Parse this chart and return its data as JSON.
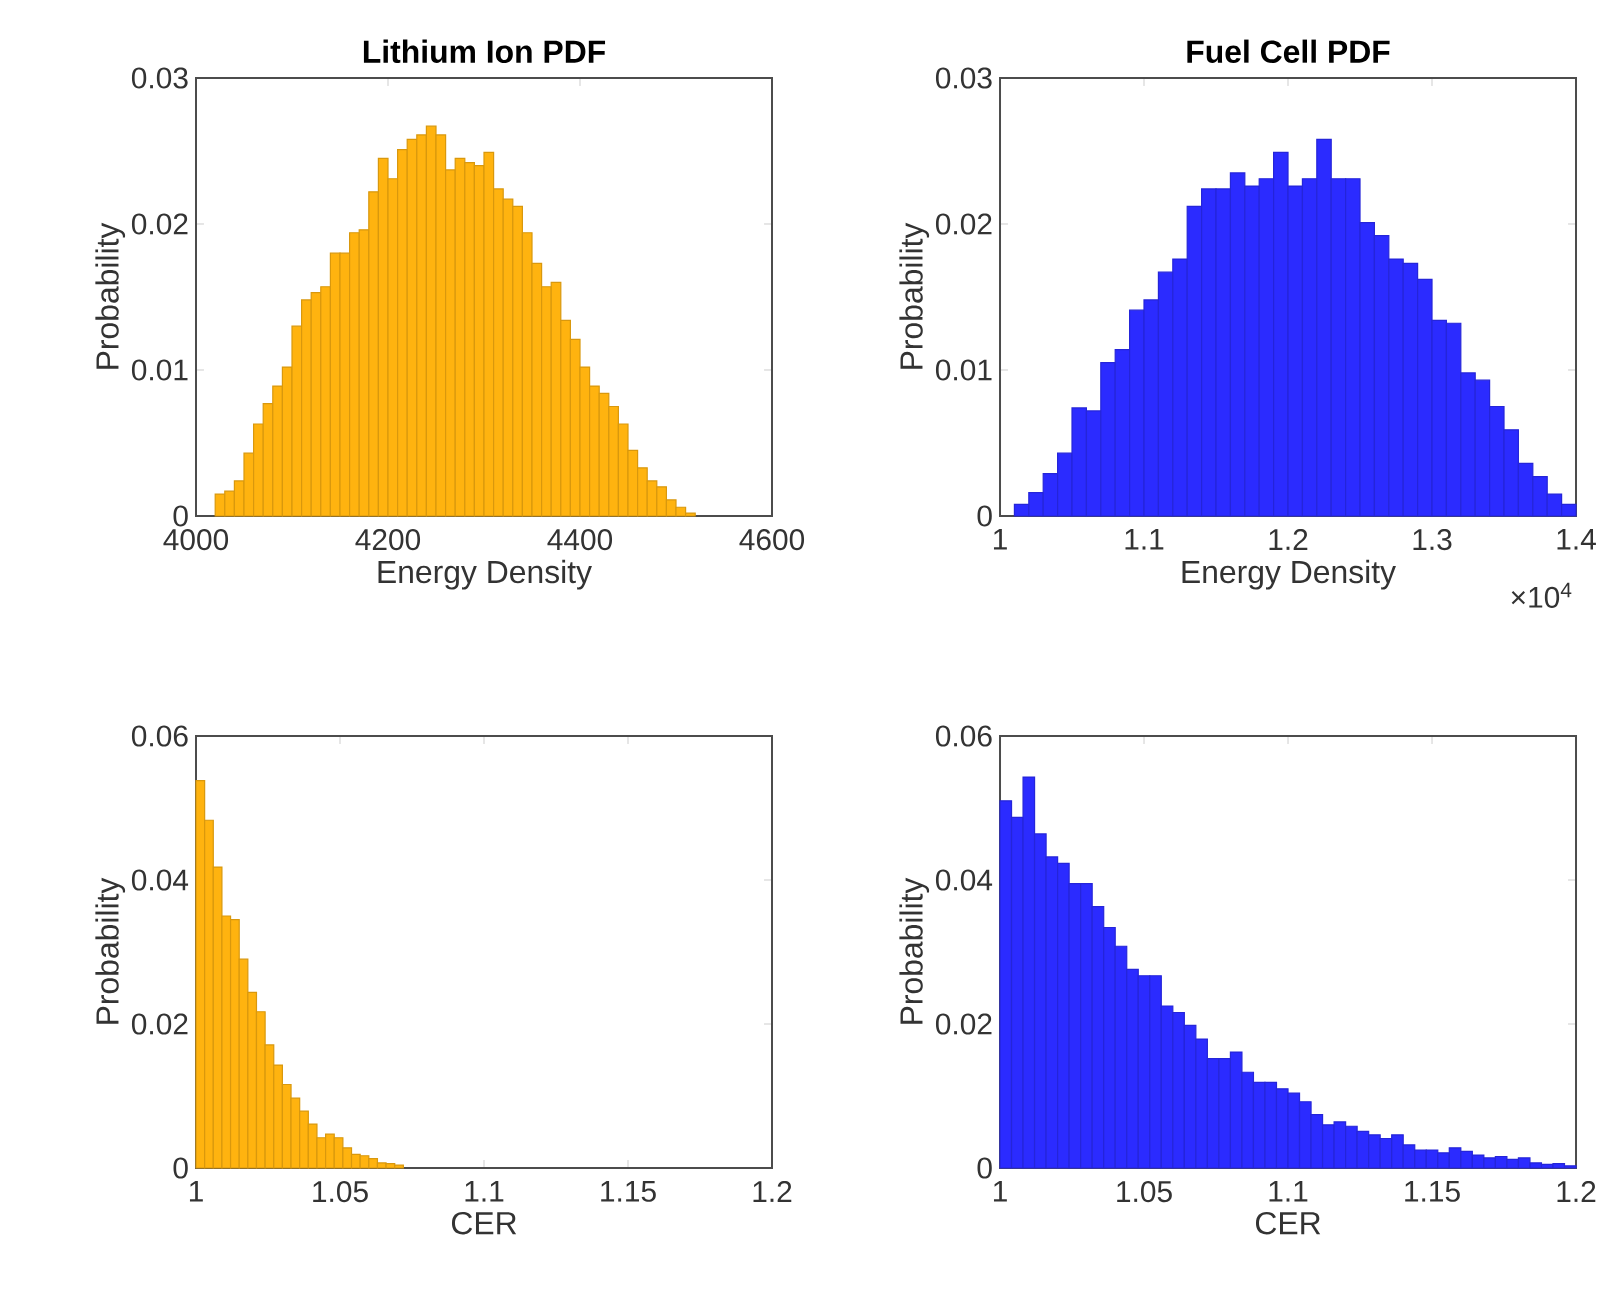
{
  "chart_data": [
    {
      "type": "histogram",
      "title": "Lithium Ion PDF",
      "xlabel": "Energy Density",
      "ylabel": "Probability",
      "color": "#ffb30f",
      "bins": [
        4020,
        4030,
        4040,
        4050,
        4060,
        4070,
        4080,
        4090,
        4100,
        4110,
        4120,
        4130,
        4140,
        4150,
        4160,
        4170,
        4180,
        4190,
        4200,
        4210,
        4220,
        4230,
        4240,
        4250,
        4260,
        4270,
        4280,
        4290,
        4300,
        4310,
        4320,
        4330,
        4340,
        4350,
        4360,
        4370,
        4380,
        4390,
        4400,
        4410,
        4420,
        4430,
        4440,
        4450,
        4460,
        4470,
        4480,
        4490,
        4500,
        4510,
        4520
      ],
      "values": [
        0.0015,
        0.0017,
        0.0024,
        0.0043,
        0.0063,
        0.0077,
        0.0089,
        0.0102,
        0.013,
        0.0148,
        0.0153,
        0.0157,
        0.018,
        0.018,
        0.0194,
        0.0196,
        0.0222,
        0.0245,
        0.0231,
        0.0251,
        0.0258,
        0.0261,
        0.0267,
        0.0261,
        0.0237,
        0.0245,
        0.0242,
        0.024,
        0.0249,
        0.0224,
        0.0217,
        0.0212,
        0.0194,
        0.0173,
        0.0157,
        0.016,
        0.0134,
        0.0121,
        0.0102,
        0.0089,
        0.0084,
        0.0075,
        0.0063,
        0.0045,
        0.0033,
        0.0024,
        0.002,
        0.0011,
        0.0006,
        0.0002
      ],
      "xlim": [
        4000,
        4600
      ],
      "xticks": [
        4000,
        4200,
        4400,
        4600
      ],
      "ylim": [
        0,
        0.03
      ],
      "yticks": [
        0,
        0.01,
        0.02,
        0.03
      ]
    },
    {
      "type": "histogram",
      "title": "Fuel Cell PDF",
      "xlabel": "Energy Density",
      "ylabel": "Probability",
      "color": "#2b2bff",
      "annotations": [
        "×10$^{4}$"
      ],
      "bins": [
        1.01,
        1.02,
        1.03,
        1.04,
        1.05,
        1.06,
        1.07,
        1.08,
        1.09,
        1.1,
        1.11,
        1.12,
        1.13,
        1.14,
        1.15,
        1.16,
        1.17,
        1.18,
        1.19,
        1.2,
        1.21,
        1.22,
        1.23,
        1.24,
        1.25,
        1.26,
        1.27,
        1.28,
        1.29,
        1.3,
        1.31,
        1.32,
        1.33,
        1.34,
        1.35,
        1.36,
        1.37,
        1.38,
        1.39,
        1.4
      ],
      "values": [
        0.0008,
        0.0016,
        0.0029,
        0.0043,
        0.0074,
        0.0072,
        0.0105,
        0.0114,
        0.0141,
        0.0148,
        0.0167,
        0.0176,
        0.0212,
        0.0224,
        0.0224,
        0.0235,
        0.0226,
        0.0231,
        0.0249,
        0.0226,
        0.0231,
        0.0258,
        0.0231,
        0.0231,
        0.0201,
        0.0192,
        0.0176,
        0.0173,
        0.0162,
        0.0134,
        0.0132,
        0.0098,
        0.0093,
        0.0075,
        0.0059,
        0.0036,
        0.0027,
        0.0015,
        0.0008
      ],
      "xlim": [
        1,
        1.4
      ],
      "xticks": [
        1,
        1.1,
        1.2,
        1.3,
        1.4
      ],
      "ylim": [
        0,
        0.03
      ],
      "yticks": [
        0,
        0.01,
        0.02,
        0.03
      ]
    },
    {
      "type": "histogram",
      "xlabel": "CER",
      "ylabel": "Probability",
      "color": "#ffb30f",
      "bins": [
        1.0,
        1.003,
        1.006,
        1.009,
        1.012,
        1.015,
        1.018,
        1.021,
        1.024,
        1.027,
        1.03,
        1.033,
        1.036,
        1.039,
        1.042,
        1.045,
        1.048,
        1.051,
        1.054,
        1.057,
        1.06,
        1.063,
        1.066,
        1.069,
        1.072
      ],
      "values": [
        0.0538,
        0.0483,
        0.0418,
        0.035,
        0.0345,
        0.029,
        0.0244,
        0.0217,
        0.0171,
        0.0143,
        0.0116,
        0.0097,
        0.0079,
        0.0061,
        0.0042,
        0.0047,
        0.0042,
        0.0028,
        0.0019,
        0.0017,
        0.0013,
        0.0007,
        0.0006,
        0.0004
      ],
      "xlim": [
        1,
        1.2
      ],
      "xticks": [
        1,
        1.05,
        1.1,
        1.15,
        1.2
      ],
      "ylim": [
        0,
        0.06
      ],
      "yticks": [
        0,
        0.02,
        0.04,
        0.06
      ]
    },
    {
      "type": "histogram",
      "xlabel": "CER",
      "ylabel": "Probability",
      "color": "#2b2bff",
      "bins": [
        1.0,
        1.004,
        1.008,
        1.012,
        1.016,
        1.02,
        1.024,
        1.028,
        1.032,
        1.036,
        1.04,
        1.044,
        1.048,
        1.052,
        1.056,
        1.06,
        1.064,
        1.068,
        1.072,
        1.076,
        1.08,
        1.084,
        1.088,
        1.092,
        1.096,
        1.1,
        1.104,
        1.108,
        1.112,
        1.116,
        1.12,
        1.124,
        1.128,
        1.132,
        1.136,
        1.14,
        1.144,
        1.148,
        1.152,
        1.156,
        1.16,
        1.164,
        1.168,
        1.172,
        1.176,
        1.18,
        1.184,
        1.188,
        1.192,
        1.196,
        1.2
      ],
      "values": [
        0.051,
        0.0487,
        0.0543,
        0.0464,
        0.0432,
        0.0423,
        0.0395,
        0.0395,
        0.0363,
        0.0334,
        0.0308,
        0.0276,
        0.0267,
        0.0267,
        0.0225,
        0.0216,
        0.0198,
        0.0179,
        0.0152,
        0.0152,
        0.0161,
        0.0133,
        0.0119,
        0.0119,
        0.011,
        0.0104,
        0.0092,
        0.0074,
        0.006,
        0.0064,
        0.0058,
        0.0051,
        0.0046,
        0.0041,
        0.0046,
        0.0032,
        0.0025,
        0.0025,
        0.0021,
        0.0028,
        0.0023,
        0.0018,
        0.0014,
        0.0016,
        0.0012,
        0.0014,
        0.0007,
        0.0005,
        0.0006,
        0.0003
      ],
      "xlim": [
        1,
        1.2
      ],
      "xticks": [
        1,
        1.05,
        1.1,
        1.15,
        1.2
      ],
      "ylim": [
        0,
        0.06
      ],
      "yticks": [
        0,
        0.02,
        0.04,
        0.06
      ]
    }
  ]
}
